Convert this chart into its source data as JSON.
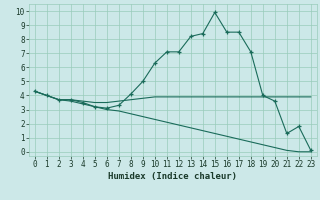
{
  "xlabel": "Humidex (Indice chaleur)",
  "ylabel": "",
  "xlim": [
    -0.5,
    23.5
  ],
  "ylim": [
    -0.3,
    10.5
  ],
  "xticks": [
    0,
    1,
    2,
    3,
    4,
    5,
    6,
    7,
    8,
    9,
    10,
    11,
    12,
    13,
    14,
    15,
    16,
    17,
    18,
    19,
    20,
    21,
    22,
    23
  ],
  "yticks": [
    0,
    1,
    2,
    3,
    4,
    5,
    6,
    7,
    8,
    9,
    10
  ],
  "bg_color": "#cce8e8",
  "grid_color": "#99ccbb",
  "line_color": "#1a6b5a",
  "line1_x": [
    0,
    1,
    2,
    3,
    4,
    5,
    6,
    7,
    8,
    9,
    10,
    11,
    12,
    13,
    14,
    15,
    16,
    17,
    18,
    19,
    20,
    21,
    22,
    23
  ],
  "line1_y": [
    4.3,
    4.0,
    3.7,
    3.7,
    3.5,
    3.2,
    3.1,
    3.3,
    4.1,
    5.0,
    6.3,
    7.1,
    7.1,
    8.2,
    8.4,
    9.9,
    8.5,
    8.5,
    7.1,
    4.0,
    3.6,
    1.3,
    1.8,
    0.1
  ],
  "line2_x": [
    0,
    1,
    2,
    3,
    4,
    5,
    6,
    7,
    8,
    9,
    10,
    11,
    12,
    13,
    14,
    15,
    16,
    17,
    18,
    19,
    20,
    21,
    22,
    23
  ],
  "line2_y": [
    4.3,
    4.0,
    3.7,
    3.7,
    3.6,
    3.5,
    3.5,
    3.6,
    3.7,
    3.8,
    3.9,
    3.9,
    3.9,
    3.9,
    3.9,
    3.9,
    3.9,
    3.9,
    3.9,
    3.9,
    3.9,
    3.9,
    3.9,
    3.9
  ],
  "line3_x": [
    0,
    1,
    2,
    3,
    4,
    5,
    6,
    7,
    8,
    9,
    10,
    11,
    12,
    13,
    14,
    15,
    16,
    17,
    18,
    19,
    20,
    21,
    22,
    23
  ],
  "line3_y": [
    4.3,
    4.0,
    3.7,
    3.6,
    3.4,
    3.2,
    3.0,
    2.9,
    2.7,
    2.5,
    2.3,
    2.1,
    1.9,
    1.7,
    1.5,
    1.3,
    1.1,
    0.9,
    0.7,
    0.5,
    0.3,
    0.1,
    0.0,
    0.0
  ]
}
